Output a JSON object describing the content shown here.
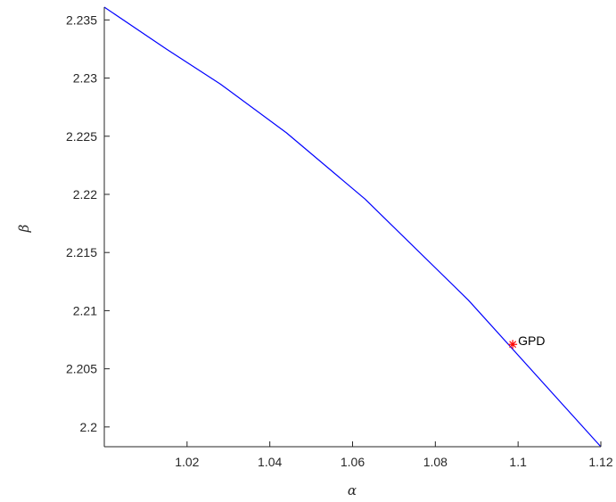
{
  "chart_data": {
    "type": "line",
    "title": "",
    "xlabel": "α",
    "ylabel": "β",
    "xlim": [
      1.0,
      1.12
    ],
    "ylim": [
      2.1983,
      2.2361
    ],
    "xticks": [
      1.02,
      1.04,
      1.06,
      1.08,
      1.1,
      1.12
    ],
    "xtick_labels": [
      "1.02",
      "1.04",
      "1.06",
      "1.08",
      "1.1",
      "1.12"
    ],
    "yticks": [
      2.2,
      2.205,
      2.21,
      2.215,
      2.22,
      2.225,
      2.23,
      2.235
    ],
    "ytick_labels": [
      "2.2",
      "2.205",
      "2.21",
      "2.215",
      "2.22",
      "2.225",
      "2.23",
      "2.235"
    ],
    "grid": false,
    "series": [
      {
        "color": "#0000ff",
        "x": [
          1.0,
          1.015,
          1.028,
          1.044,
          1.063,
          1.088,
          1.12
        ],
        "y": [
          2.2361,
          2.2325,
          2.2295,
          2.2253,
          2.2196,
          2.2109,
          2.1983
        ]
      }
    ],
    "annotations": [
      {
        "text": "GPD",
        "x": 1.0987,
        "y": 2.2071,
        "marker": "asterisk",
        "color": "#ff0000"
      }
    ]
  }
}
